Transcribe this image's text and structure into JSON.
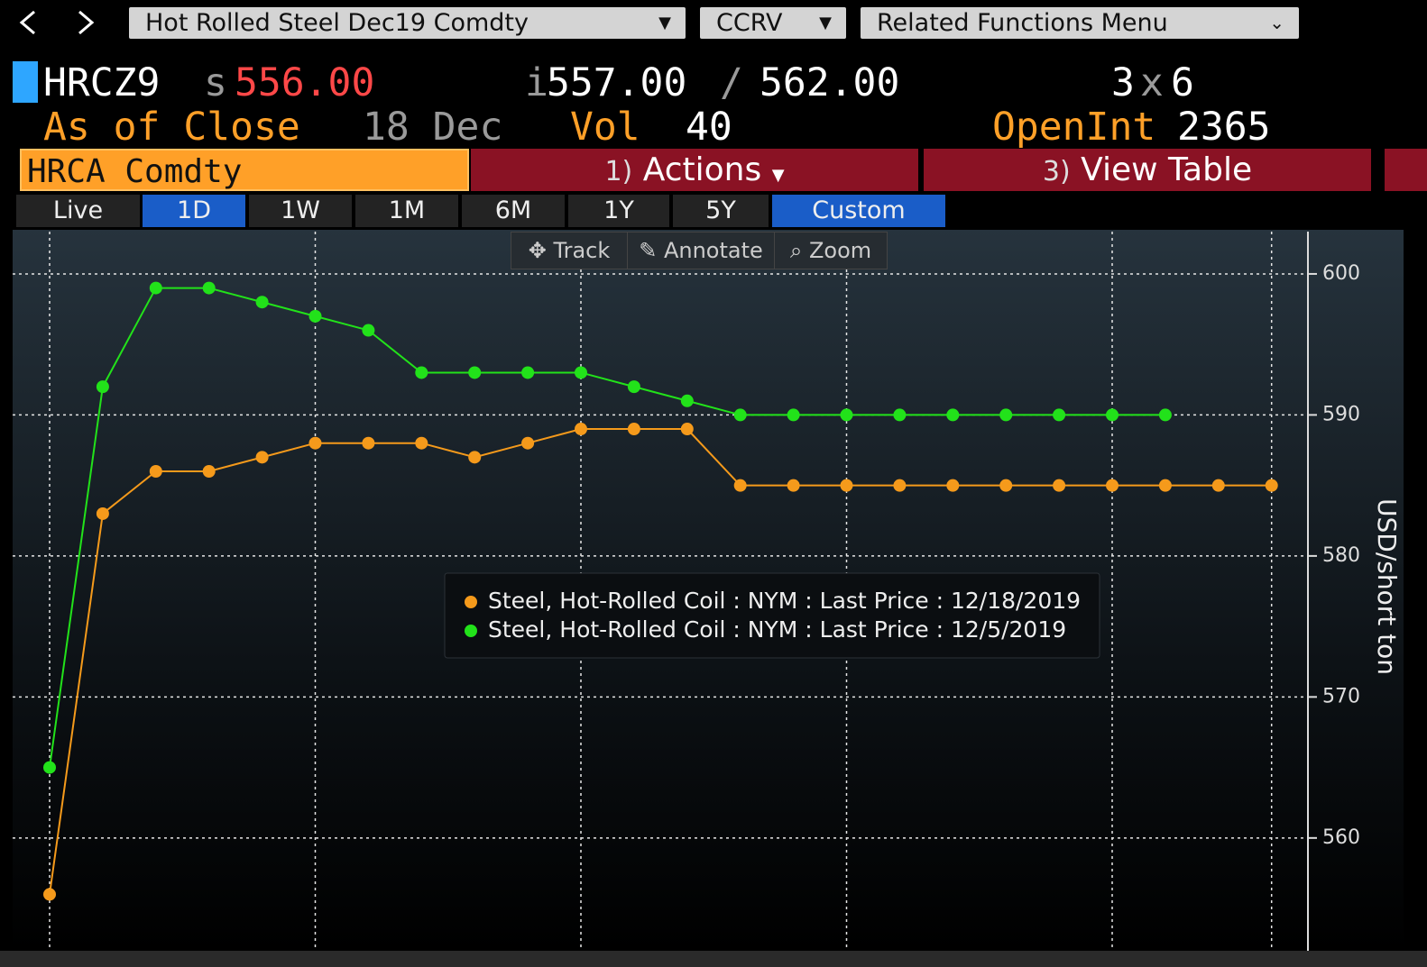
{
  "toolbar": {
    "security": "Hot Rolled Steel Dec19 Comdty",
    "function": "CCRV",
    "menu": "Related Functions Menu"
  },
  "quote": {
    "ticker": "HRCZ9",
    "last_prefix": "s",
    "last": "556.00",
    "bid_prefix": "i",
    "bid": "557.00",
    "separator": "/",
    "ask": "562.00",
    "bid_size": 3,
    "size_separator": "x",
    "ask_size": 6,
    "close_label": "As of Close",
    "date": "18 Dec",
    "volume_label": "Vol",
    "volume": 40,
    "open_interest_label": "OpenInt",
    "open_interest": 2365
  },
  "tabs": {
    "security": "HRCA Comdty",
    "actions_number": "1)",
    "actions": "Actions",
    "table_number": "3)",
    "table": "View Table"
  },
  "periods": [
    {
      "label": "Live",
      "active": false
    },
    {
      "label": "1D",
      "active": true
    },
    {
      "label": "1W",
      "active": false
    },
    {
      "label": "1M",
      "active": false
    },
    {
      "label": "6M",
      "active": false
    },
    {
      "label": "1Y",
      "active": false
    },
    {
      "label": "5Y",
      "active": false
    },
    {
      "label": "Custom",
      "active": true
    }
  ],
  "chart_tools": [
    "Track",
    "Annotate",
    "Zoom"
  ],
  "chart_data": {
    "type": "line",
    "y_label": "USD/short ton",
    "y_axis_side": "right",
    "legend": "center",
    "grid": true,
    "categories": [
      null,
      null,
      null,
      null,
      null,
      null,
      null,
      null,
      null,
      null,
      null,
      null,
      null,
      null,
      null,
      null,
      null,
      null,
      null,
      null,
      null,
      null,
      null,
      null
    ],
    "series": [
      {
        "name": "Steel, Hot-Rolled Coil : NYM : Last Price : 12/18/2019",
        "color": "#f59a1b",
        "values": [
          556,
          583,
          586,
          586,
          587,
          588,
          588,
          588,
          587,
          588,
          589,
          589,
          589,
          585,
          585,
          585,
          585,
          585,
          585,
          585,
          585,
          585,
          585,
          585
        ]
      },
      {
        "name": "Steel, Hot-Rolled Coil : NYM : Last Price : 12/5/2019",
        "color": "#22e21a",
        "values": [
          565,
          592,
          599,
          599,
          598,
          597,
          596,
          593,
          593,
          593,
          593,
          592,
          591,
          590,
          590,
          590,
          590,
          590,
          590,
          590,
          590,
          590,
          null,
          null
        ]
      }
    ],
    "ylim": [
      552,
      603
    ],
    "yticks": [
      560,
      570,
      580,
      590,
      600
    ]
  }
}
